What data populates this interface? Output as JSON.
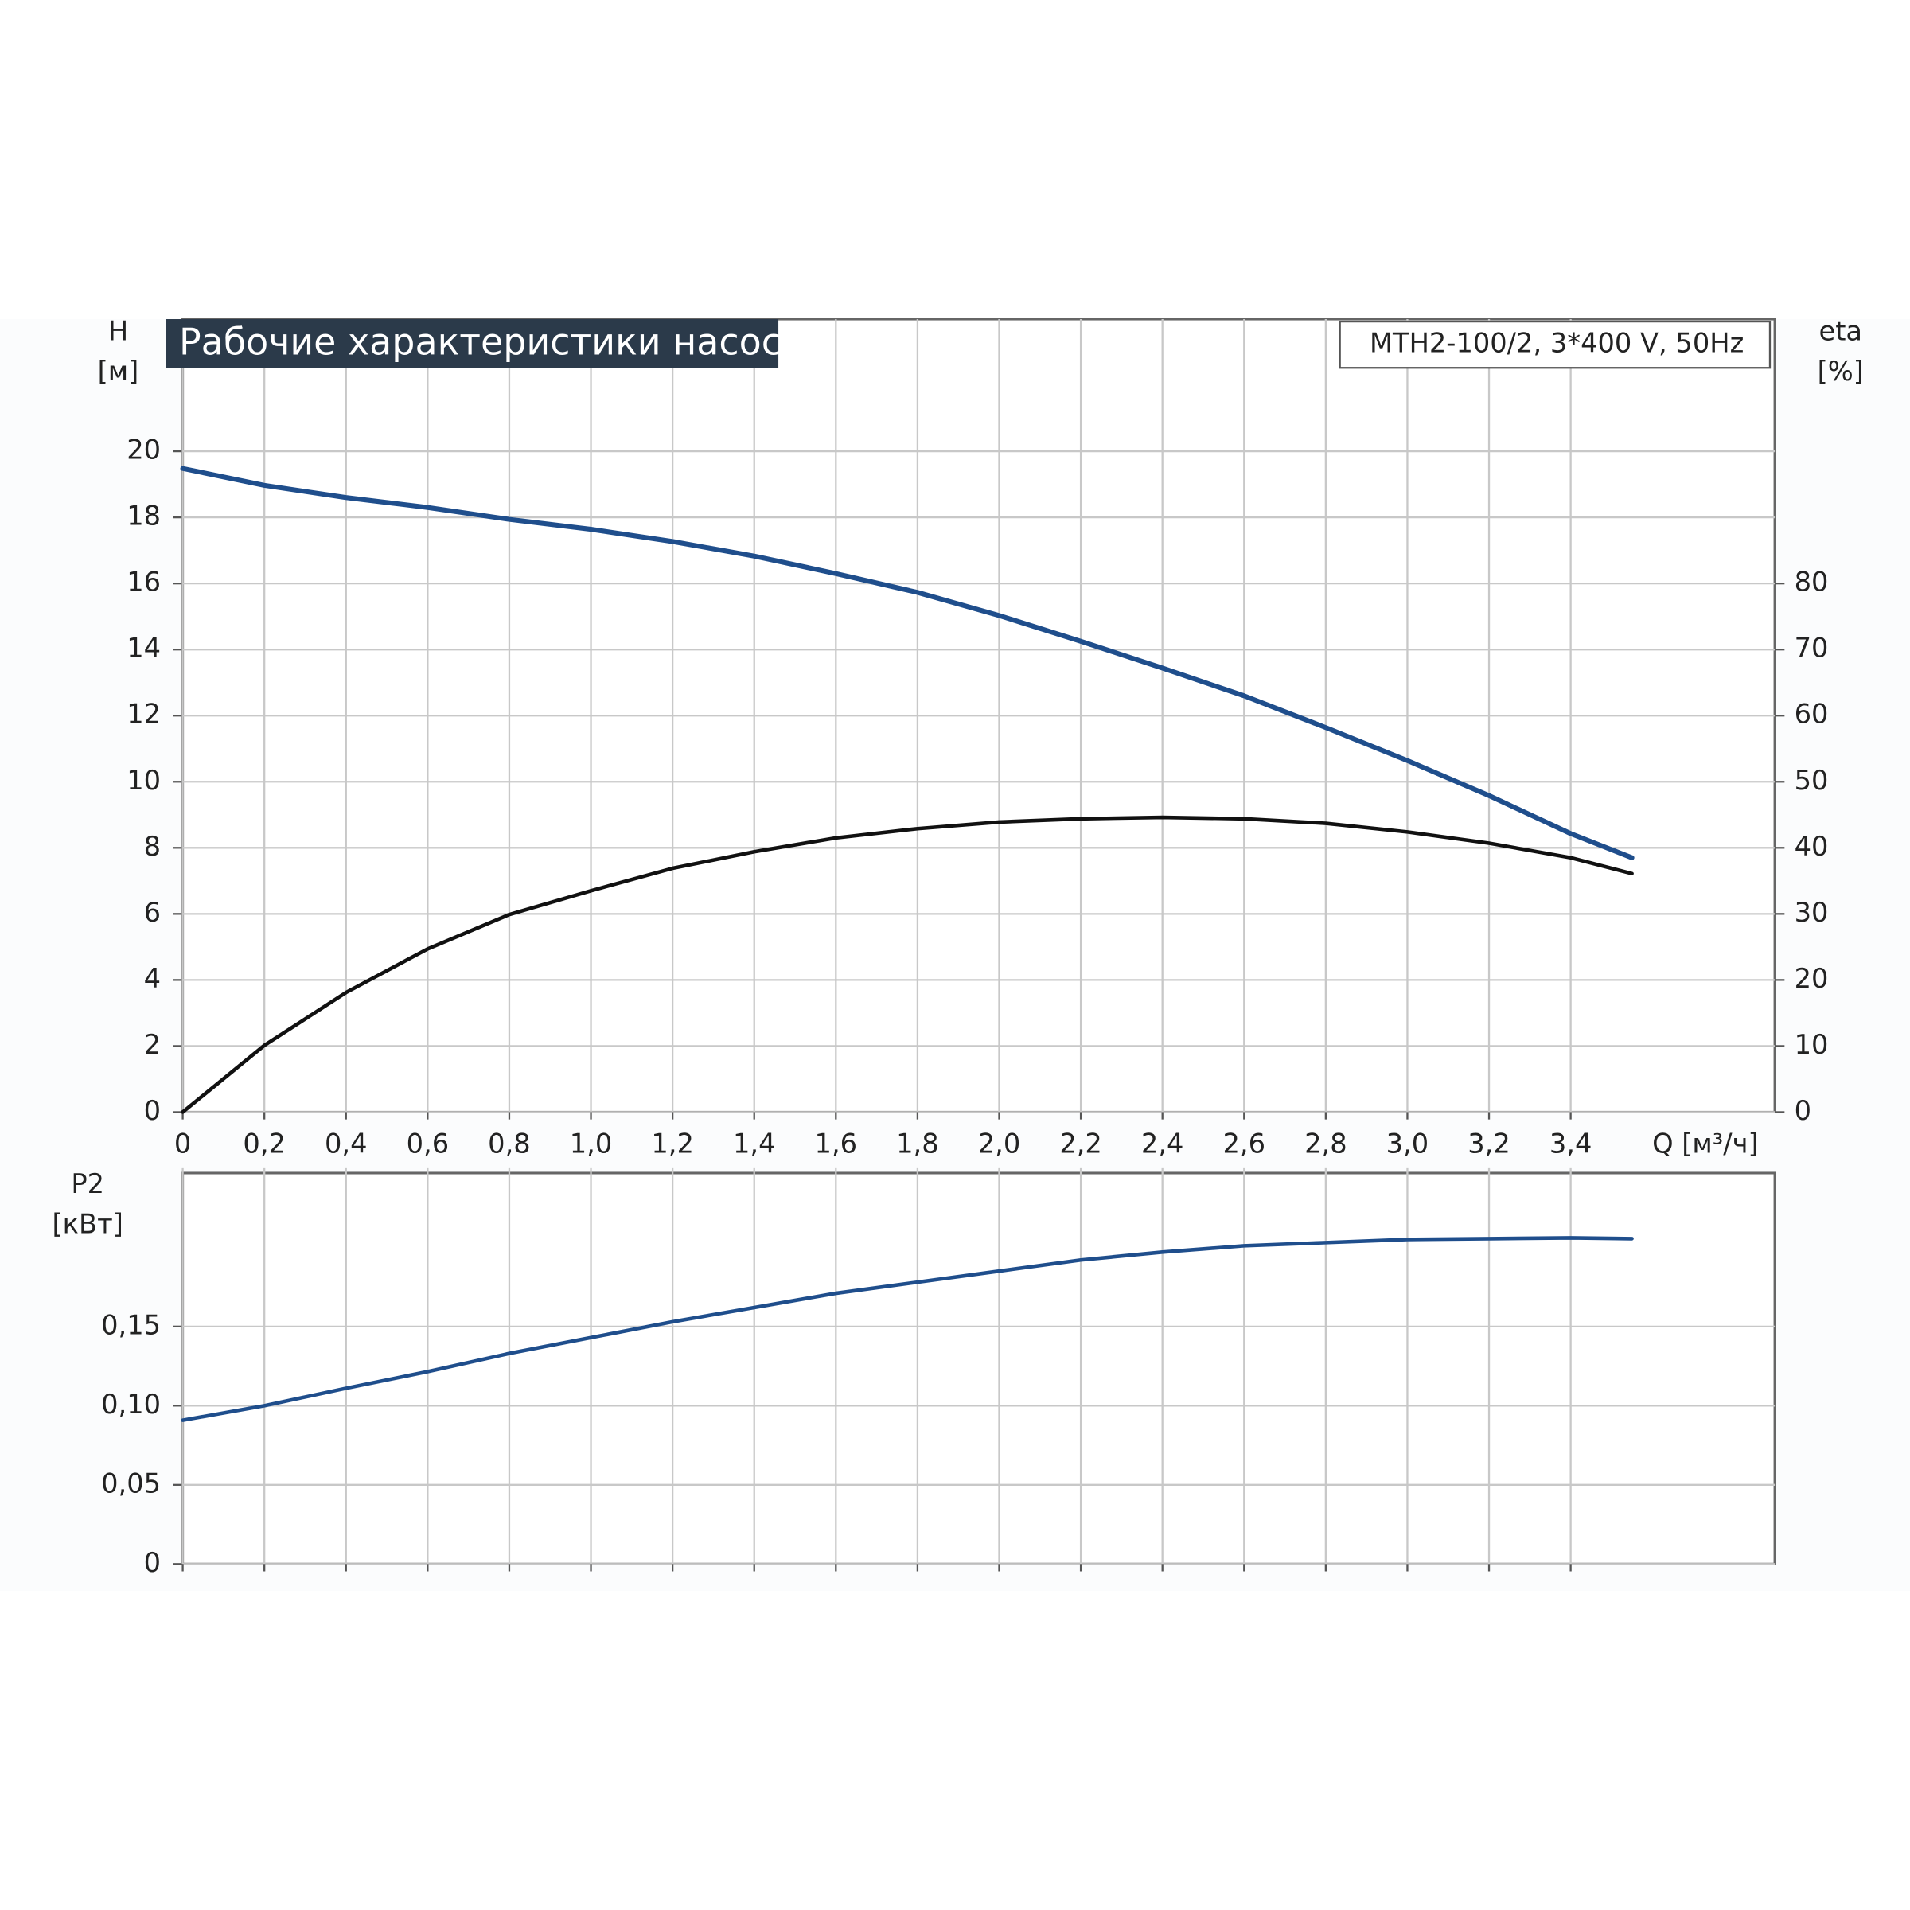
{
  "chart_data": [
    {
      "type": "line",
      "title": "Рабочие характеристики насоса",
      "subtitle": "MTH2-100/2, 3*400 V, 50Hz",
      "ylabel": "H",
      "yunit": "[м]",
      "y2label": "eta",
      "y2unit": "[%]",
      "xlabel": "Q [м³/ч]",
      "x": [
        0,
        0.2,
        0.4,
        0.6,
        0.8,
        1.0,
        1.2,
        1.4,
        1.6,
        1.8,
        2.0,
        2.2,
        2.4,
        2.6,
        2.8,
        3.0,
        3.2,
        3.4,
        3.55
      ],
      "series": [
        {
          "color": "#1f4e8c",
          "axis": "y",
          "values": [
            19.48,
            18.97,
            18.6,
            18.3,
            17.94,
            17.64,
            17.27,
            16.83,
            16.3,
            15.73,
            15.03,
            14.25,
            13.44,
            12.6,
            11.64,
            10.64,
            9.58,
            8.43,
            7.7
          ]
        },
        {
          "color": "#111111",
          "axis": "y2",
          "values": [
            0,
            10.1,
            18.1,
            24.7,
            29.9,
            33.5,
            36.9,
            39.4,
            41.5,
            42.9,
            43.9,
            44.4,
            44.6,
            44.4,
            43.7,
            42.4,
            40.7,
            38.5,
            36.1
          ]
        }
      ],
      "xlim": [
        0,
        3.9
      ],
      "xticks": [
        0,
        {
          "value": 0.2,
          "label": "0,2"
        },
        {
          "value": 0.4,
          "label": "0,4"
        },
        {
          "value": 0.6,
          "label": "0,6"
        },
        {
          "value": 0.8,
          "label": "0,8"
        },
        {
          "value": 1.0,
          "label": "1,0"
        },
        {
          "value": 1.2,
          "label": "1,2"
        },
        {
          "value": 1.4,
          "label": "1,4"
        },
        {
          "value": 1.6,
          "label": "1,6"
        },
        {
          "value": 1.8,
          "label": "1,8"
        },
        {
          "value": 2.0,
          "label": "2,0"
        },
        {
          "value": 2.2,
          "label": "2,2"
        },
        {
          "value": 2.4,
          "label": "2,4"
        },
        {
          "value": 2.6,
          "label": "2,6"
        },
        {
          "value": 2.8,
          "label": "2,8"
        },
        {
          "value": 3.0,
          "label": "3,0"
        },
        {
          "value": 3.2,
          "label": "3,2"
        },
        {
          "value": 3.4,
          "label": "3,4"
        }
      ],
      "ylim": [
        0,
        24
      ],
      "yticks": [
        0,
        2,
        4,
        6,
        8,
        10,
        12,
        14,
        16,
        18,
        20
      ],
      "y2lim": [
        0,
        120
      ],
      "y2ticks": [
        0,
        10,
        20,
        30,
        40,
        50,
        60,
        70,
        80
      ],
      "grid": true
    },
    {
      "type": "line",
      "ylabel": "P2",
      "yunit": "[кВт]",
      "x": [
        0,
        0.2,
        0.4,
        0.6,
        0.8,
        1.0,
        1.2,
        1.4,
        1.6,
        1.8,
        2.0,
        2.2,
        2.4,
        2.6,
        2.8,
        3.0,
        3.2,
        3.4,
        3.55
      ],
      "series": [
        {
          "color": "#1f4e8c",
          "axis": "y",
          "values": [
            0.0908,
            0.1,
            0.111,
            0.1215,
            0.133,
            0.143,
            0.153,
            0.162,
            0.171,
            0.178,
            0.185,
            0.192,
            0.197,
            0.201,
            0.203,
            0.205,
            0.2055,
            0.206,
            0.2055
          ]
        }
      ],
      "xlim": [
        0,
        3.9
      ],
      "ylim": [
        0,
        0.25
      ],
      "yticks": [
        0,
        {
          "value": 0.05,
          "label": "0,05"
        },
        {
          "value": 0.1,
          "label": "0,10"
        },
        {
          "value": 0.15,
          "label": "0,15"
        }
      ],
      "grid": true
    }
  ]
}
